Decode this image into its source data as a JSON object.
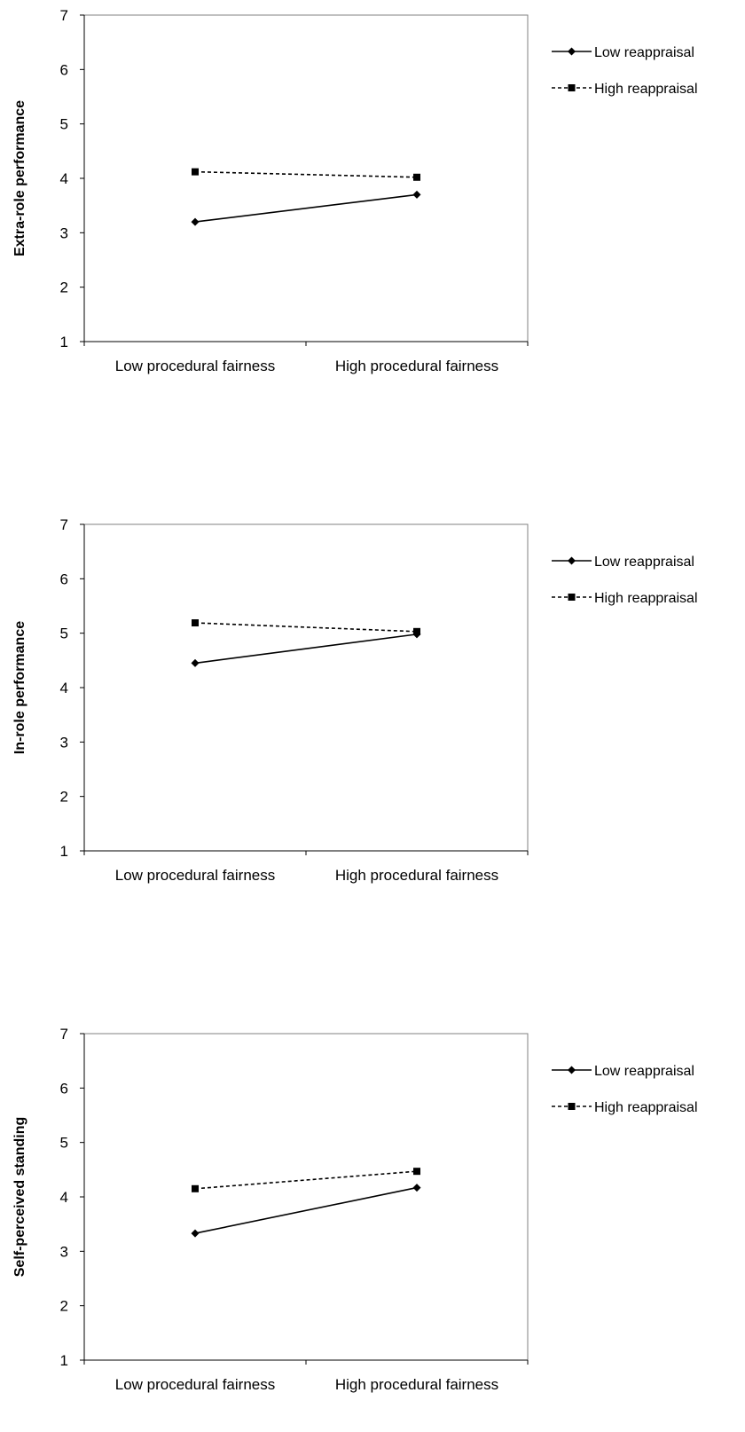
{
  "chart_data": [
    {
      "type": "line",
      "title": "",
      "xlabel": "",
      "ylabel": "Extra-role performance",
      "ylim": [
        1,
        7
      ],
      "yticks": [
        "1",
        "2",
        "3",
        "4",
        "5",
        "6",
        "7"
      ],
      "categories": [
        "Low procedural fairness",
        "High procedural fairness"
      ],
      "legend_position": "top-right",
      "grid": false,
      "series": [
        {
          "name": "Low reappraisal",
          "values": [
            3.2,
            3.7
          ],
          "line_style": "solid",
          "marker": "diamond"
        },
        {
          "name": "High reappraisal",
          "values": [
            4.12,
            4.02
          ],
          "line_style": "dashed",
          "marker": "square"
        }
      ]
    },
    {
      "type": "line",
      "title": "",
      "xlabel": "",
      "ylabel": "In-role performance",
      "ylim": [
        1,
        7
      ],
      "yticks": [
        "1",
        "2",
        "3",
        "4",
        "5",
        "6",
        "7"
      ],
      "categories": [
        "Low procedural fairness",
        "High procedural fairness"
      ],
      "legend_position": "top-right",
      "grid": false,
      "series": [
        {
          "name": "Low reappraisal",
          "values": [
            4.45,
            4.98
          ],
          "line_style": "solid",
          "marker": "diamond"
        },
        {
          "name": "High reappraisal",
          "values": [
            5.19,
            5.03
          ],
          "line_style": "dashed",
          "marker": "square"
        }
      ]
    },
    {
      "type": "line",
      "title": "",
      "xlabel": "",
      "ylabel": "Self-perceived standing",
      "ylim": [
        1,
        7
      ],
      "yticks": [
        "1",
        "2",
        "3",
        "4",
        "5",
        "6",
        "7"
      ],
      "categories": [
        "Low procedural fairness",
        "High procedural fairness"
      ],
      "legend_position": "top-right",
      "grid": false,
      "series": [
        {
          "name": "Low reappraisal",
          "values": [
            3.33,
            4.17
          ],
          "line_style": "solid",
          "marker": "diamond"
        },
        {
          "name": "High reappraisal",
          "values": [
            4.15,
            4.47
          ],
          "line_style": "dashed",
          "marker": "square"
        }
      ]
    }
  ]
}
